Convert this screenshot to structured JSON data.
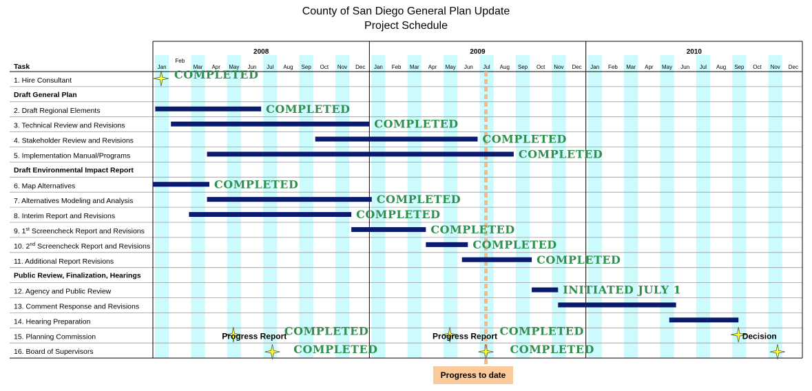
{
  "title": "County of San Diego General Plan Update",
  "subtitle": "Project Schedule",
  "progress_label": "Progress to date",
  "colors": {
    "bar": "#0a1a6e",
    "stripe": "#ccfbfd",
    "status_text": "#2f8f4e",
    "progress_line": "#f7b98a",
    "star_fill": "#ffff33",
    "progress_box": "#fbc99a"
  },
  "chart_data": {
    "type": "gantt",
    "title": "County of San Diego General Plan Update",
    "subtitle": "Project Schedule",
    "task_header": "Task",
    "years": [
      "2008",
      "2009",
      "2010"
    ],
    "months": [
      "Jan",
      "Feb",
      "Mar",
      "Apr",
      "May",
      "Jun",
      "Jul",
      "Aug",
      "Sep",
      "Oct",
      "Nov",
      "Dec"
    ],
    "progress_to_date": "2009-07-15",
    "rows": [
      {
        "label": "1.   Hire Consultant",
        "kind": "task",
        "milestones": [
          "2008-01-15"
        ],
        "status": "COMPLETED"
      },
      {
        "label": "Draft General Plan",
        "kind": "section"
      },
      {
        "label": "2.   Draft Regional Elements",
        "kind": "task",
        "start": "2008-01-05",
        "end": "2008-07-01",
        "status": "COMPLETED"
      },
      {
        "label": "3.   Technical Review and Revisions",
        "kind": "task",
        "start": "2008-02-01",
        "end": "2009-01-01",
        "status": "COMPLETED"
      },
      {
        "label": "4.   Stakeholder Review and Revisions",
        "kind": "task",
        "start": "2008-10-01",
        "end": "2009-07-01",
        "status": "COMPLETED"
      },
      {
        "label": "5.   Implementation Manual/Programs",
        "kind": "task",
        "start": "2008-04-01",
        "end": "2009-09-01",
        "status": "COMPLETED"
      },
      {
        "label": "Draft Environmental Impact Report",
        "kind": "section"
      },
      {
        "label": "6.   Map Alternatives",
        "kind": "task",
        "start": "2008-01-01",
        "end": "2008-04-05",
        "status": "COMPLETED"
      },
      {
        "label": "7.   Alternatives Modeling and Analysis",
        "kind": "task",
        "start": "2008-04-01",
        "end": "2009-01-05",
        "status": "COMPLETED"
      },
      {
        "label": "8.   Interim Report and Revisions",
        "kind": "task",
        "start": "2008-03-01",
        "end": "2008-12-01",
        "status": "COMPLETED"
      },
      {
        "label_prefix": "9.   1",
        "label_sup": "st",
        "label_suffix": " Screencheck Report and Revisions",
        "kind": "task",
        "start": "2008-12-01",
        "end": "2009-04-05",
        "status": "COMPLETED"
      },
      {
        "label_prefix": "10.  2",
        "label_sup": "nd",
        "label_suffix": " Screencheck Report and Revisions",
        "kind": "task",
        "start": "2009-04-05",
        "end": "2009-06-15",
        "status": "COMPLETED"
      },
      {
        "label": "11.  Additional Report Revisions",
        "kind": "task",
        "start": "2009-06-05",
        "end": "2009-10-01",
        "status": "COMPLETED"
      },
      {
        "label": "Public Review, Finalization, Hearings",
        "kind": "section"
      },
      {
        "label": "12.  Agency and Public Review",
        "kind": "task",
        "start": "2009-10-01",
        "end": "2009-11-15",
        "status": "INITIATED JULY 1"
      },
      {
        "label": "13.  Comment Response and Revisions",
        "kind": "task",
        "start": "2009-11-15",
        "end": "2010-06-01"
      },
      {
        "label": "14.  Hearing Preparation",
        "kind": "task",
        "start": "2010-05-20",
        "end": "2010-09-15"
      },
      {
        "label": "15.  Planning Commission",
        "kind": "task",
        "milestones": [
          "2008-05-15",
          "2009-05-15",
          "2010-09-15"
        ],
        "notes": [
          {
            "text": "Progress Report",
            "date": "2008-06-20"
          },
          {
            "text": "Progress Report",
            "date": "2009-06-10"
          },
          {
            "text": "Decision",
            "date": "2010-10-20"
          }
        ],
        "status_marks": [
          {
            "text": "COMPLETED",
            "date": "2008-10-20"
          },
          {
            "text": "COMPLETED",
            "date": "2009-10-18"
          }
        ]
      },
      {
        "label": "16.  Board of Supervisors",
        "kind": "task",
        "milestones": [
          "2008-07-20",
          "2009-07-15",
          "2010-11-20"
        ],
        "status_marks": [
          {
            "text": "COMPLETED",
            "date": "2008-11-05"
          },
          {
            "text": "COMPLETED",
            "date": "2009-11-05"
          }
        ]
      }
    ]
  }
}
